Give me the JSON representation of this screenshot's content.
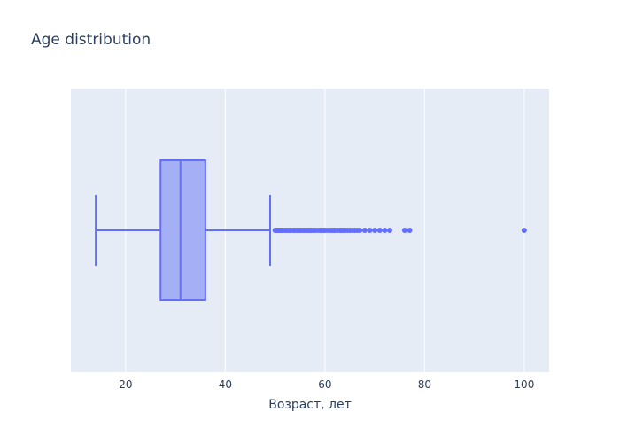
{
  "chart_data": {
    "type": "box",
    "title": "Age distribution",
    "xlabel": "Возраст, лет",
    "ylabel": "",
    "orientation": "horizontal",
    "xlim": [
      9,
      105
    ],
    "xticks": [
      20,
      40,
      60,
      80,
      100
    ],
    "grid": true,
    "legend": false,
    "colors": {
      "plot_bg": "#e5ecf6",
      "grid": "#ffffff",
      "box_fill": "#a5aff5",
      "box_line": "#636efa",
      "text": "#2a3f5f"
    },
    "box": {
      "min": 14,
      "q1": 27,
      "median": 31,
      "q3": 36,
      "max": 49,
      "outliers": [
        50,
        50.2,
        50.5,
        50.8,
        51,
        51.3,
        51.6,
        52,
        52.3,
        52.7,
        53,
        53.4,
        53.8,
        54,
        54.4,
        54.8,
        55,
        55.3,
        55.7,
        56,
        56.4,
        56.8,
        57,
        57.3,
        57.7,
        58,
        58.5,
        59,
        59.3,
        59.7,
        60,
        60.5,
        61,
        61.4,
        61.8,
        62,
        62.5,
        63,
        63.3,
        63.7,
        64,
        64.5,
        65,
        65.5,
        66,
        66.5,
        67,
        68,
        69,
        70,
        71,
        72,
        73,
        76,
        77,
        100
      ]
    }
  }
}
